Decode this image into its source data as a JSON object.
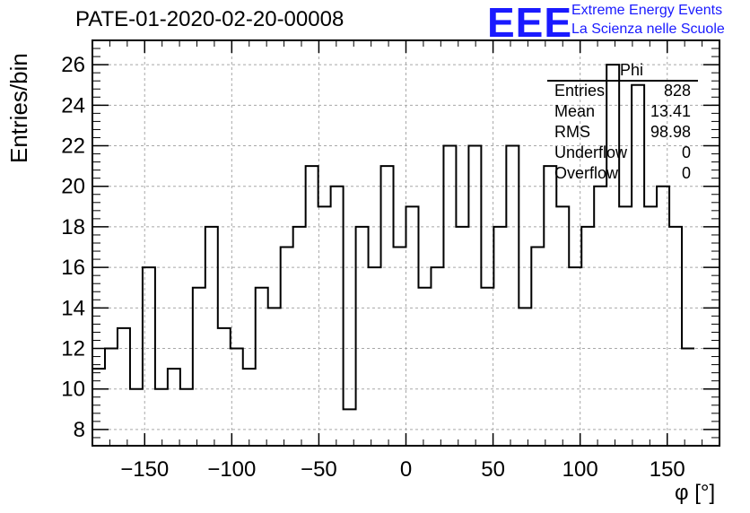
{
  "title": "PATE-01-2020-02-20-00008",
  "logo": {
    "mark": "EEE",
    "line1": "Extreme Energy Events",
    "line2": "La Scienza nelle Scuole",
    "color": "#1a1aff"
  },
  "stats_box": {
    "name": "Phi",
    "rows": [
      {
        "label": "Entries",
        "value": "828"
      },
      {
        "label": "Mean",
        "value": "13.41"
      },
      {
        "label": "RMS",
        "value": "98.98"
      },
      {
        "label": "Underflow",
        "value": "0"
      },
      {
        "label": "Overflow",
        "value": "0"
      }
    ]
  },
  "chart_data": {
    "type": "histogram",
    "title": "PATE-01-2020-02-20-00008",
    "xlabel": "φ [°]",
    "ylabel": "Entries/bin",
    "xlim": [
      -180,
      180
    ],
    "ylim": [
      7.2,
      27.2
    ],
    "bin_width": 7.2,
    "bin_edges_start": -180,
    "values": [
      11,
      12,
      13,
      10,
      16,
      10,
      11,
      10,
      15,
      18,
      13,
      12,
      11,
      15,
      14,
      17,
      18,
      21,
      19,
      20,
      9,
      18,
      16,
      21,
      17,
      19,
      15,
      16,
      22,
      18,
      22,
      15,
      18,
      22,
      14,
      17,
      21,
      19,
      16,
      18,
      20,
      26,
      19,
      25,
      19,
      20,
      18,
      12
    ],
    "x_ticks": [
      -150,
      -100,
      -50,
      0,
      50,
      100,
      150
    ],
    "x_tick_labels": [
      "−150",
      "−100",
      "−50",
      "0",
      "50",
      "100",
      "150"
    ],
    "y_ticks": [
      8,
      10,
      12,
      14,
      16,
      18,
      20,
      22,
      24,
      26
    ],
    "grid": true
  }
}
